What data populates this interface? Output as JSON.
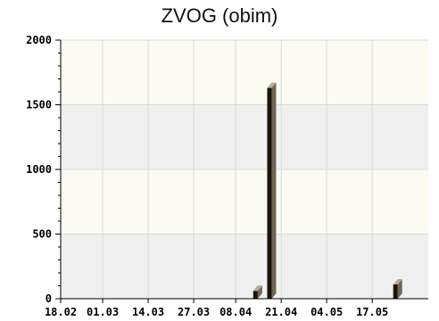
{
  "chart_data": {
    "type": "bar",
    "title": "ZVOG (obim)",
    "xlabel": "",
    "ylabel": "",
    "ylim": [
      0,
      2000
    ],
    "yticks": [
      0,
      500,
      1000,
      1500,
      2000
    ],
    "grid": true,
    "x_tick_labels": [
      "18.02",
      "01.03",
      "14.03",
      "27.03",
      "08.04",
      "21.04",
      "04.05",
      "17.05"
    ],
    "series": [
      {
        "values": [
          {
            "date": "2024-04-13",
            "value": 60
          },
          {
            "date": "2024-04-17",
            "value": 1630
          },
          {
            "date": "2024-05-23",
            "value": 110
          }
        ]
      }
    ],
    "colors": {
      "plot_background_a": "#fbfbf2",
      "plot_background_b": "#f0f0f0",
      "grid": "#d8d8d8",
      "bar_front": "#1b140c",
      "bar_side": "#6f6658",
      "bar_top": "#b5a894",
      "axis": "#000000"
    }
  }
}
